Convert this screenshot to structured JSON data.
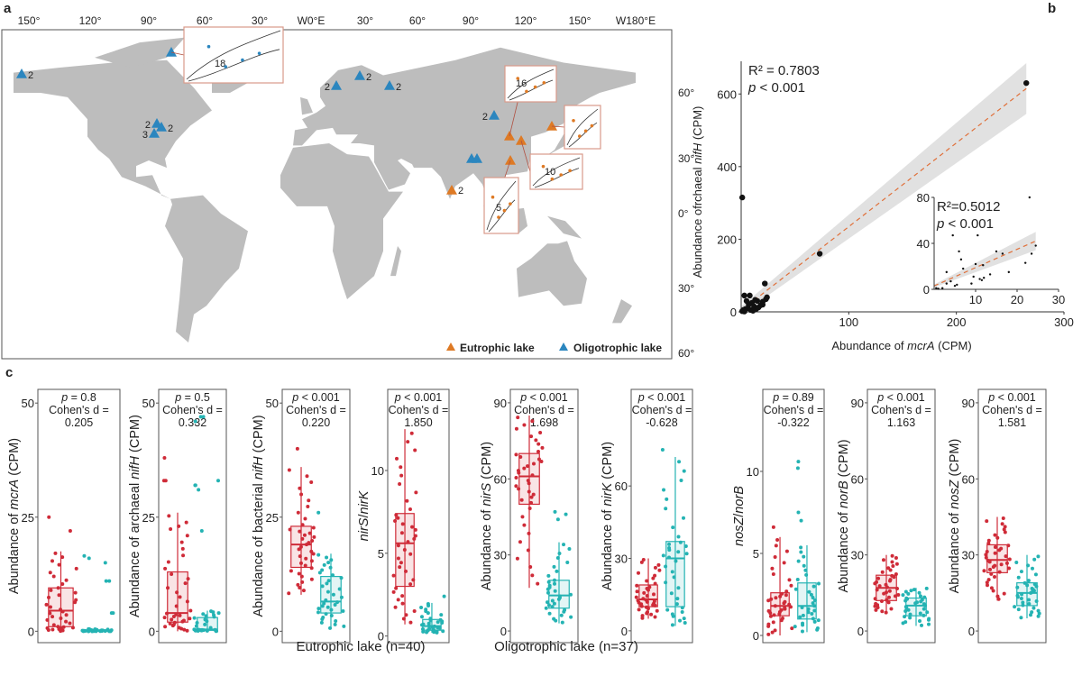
{
  "panel_labels": {
    "a": "a",
    "b": "b",
    "c": "c"
  },
  "map": {
    "lon_labels": [
      "150°",
      "120°",
      "90°",
      "60°",
      "30°",
      "W0°E",
      "30°",
      "60°",
      "90°",
      "120°",
      "150°",
      "W180°E"
    ],
    "lat_labels": [
      "60°",
      "30°",
      "0°",
      "30°",
      "60°"
    ],
    "site_labels": [
      "2",
      "2",
      "2",
      "2",
      "2",
      "2",
      "3",
      "2",
      "2"
    ],
    "inset_labels": [
      "18",
      "16",
      "10",
      "5"
    ],
    "legend": {
      "eutrophic": "Eutrophic lake",
      "oligotrophic": "Oligotrophic lake"
    },
    "colors": {
      "land": "#bdbdbd",
      "eutrophic": "#de7a25",
      "oligotrophic": "#2b86bf",
      "inset_border": "#d99a8a"
    }
  },
  "legend_c": {
    "eutrophic": "Eutrophic lake (n=40)",
    "oligotrophic": "Oligotrophic lake (n=37)"
  },
  "colors": {
    "eutrophic": "#cf2b38",
    "oligotrophic": "#24b3b3",
    "fit": "#e0703a",
    "ci": "#d9d9d9"
  },
  "chart_data": [
    {
      "type": "scatter",
      "id": "b-main",
      "xlabel": {
        "pre": "Abundance of ",
        "gene": "mcrA",
        "post": " (CPM)"
      },
      "ylabel": {
        "pre": "Abundance ofrchaeal ",
        "gene": "nifH",
        "post": " (CPM)"
      },
      "xticks": [
        100,
        200,
        300
      ],
      "yticks": [
        0,
        200,
        400,
        600
      ],
      "xlim": [
        0,
        300
      ],
      "ylim": [
        0,
        690
      ],
      "r2": "R² = 0.7803",
      "p_sym": "p",
      "p_text": " < 0.001",
      "fit": {
        "x0": 0,
        "y0": 4,
        "x1": 265,
        "y1": 615,
        "ci_half_width_end": 70
      },
      "points": [
        [
          1,
          315
        ],
        [
          265,
          630
        ],
        [
          73,
          160
        ],
        [
          22,
          78
        ],
        [
          3,
          45
        ],
        [
          8,
          45
        ],
        [
          5,
          30
        ],
        [
          10,
          25
        ],
        [
          15,
          30
        ],
        [
          20,
          20
        ],
        [
          23,
          35
        ],
        [
          12,
          15
        ],
        [
          6,
          10
        ],
        [
          2,
          5
        ],
        [
          1,
          2
        ],
        [
          4,
          8
        ],
        [
          18,
          18
        ],
        [
          9,
          5
        ],
        [
          14,
          8
        ],
        [
          7,
          20
        ],
        [
          16,
          12
        ],
        [
          11,
          3
        ],
        [
          3,
          1
        ],
        [
          20,
          28
        ],
        [
          24,
          40
        ],
        [
          13,
          33
        ]
      ]
    },
    {
      "type": "scatter",
      "id": "b-inset",
      "xticks": [
        10,
        20,
        30
      ],
      "yticks": [
        0,
        40,
        80
      ],
      "xlim": [
        0,
        30
      ],
      "ylim": [
        0,
        80
      ],
      "r2": "R²=0.5012",
      "p_sym": "p",
      "p_text": " < 0.001",
      "fit": {
        "x0": 0,
        "y0": 3,
        "x1": 24.5,
        "y1": 42,
        "ci_half_width_end": 8
      },
      "points": [
        [
          0.5,
          1
        ],
        [
          1,
          0.5
        ],
        [
          2,
          1
        ],
        [
          3,
          5
        ],
        [
          3,
          15
        ],
        [
          4,
          7
        ],
        [
          4.5,
          47
        ],
        [
          5,
          3
        ],
        [
          5.5,
          4
        ],
        [
          6,
          33
        ],
        [
          6.5,
          26
        ],
        [
          7,
          18
        ],
        [
          9,
          5
        ],
        [
          9.5,
          11
        ],
        [
          10,
          22
        ],
        [
          10.5,
          47
        ],
        [
          11,
          9
        ],
        [
          11.5,
          8
        ],
        [
          11.8,
          21
        ],
        [
          12,
          10
        ],
        [
          13.5,
          13
        ],
        [
          15,
          33
        ],
        [
          16.5,
          31
        ],
        [
          18,
          15
        ],
        [
          22,
          23
        ],
        [
          23,
          80
        ],
        [
          23.5,
          31
        ],
        [
          24.5,
          38
        ]
      ]
    },
    {
      "type": "box",
      "ylabel": [
        {
          "t": "Abundance of "
        },
        {
          "t": "mcrA",
          "i": true
        },
        {
          "t": " (CPM)"
        }
      ],
      "yticks": [
        0,
        25,
        50
      ],
      "ylim": [
        -2.5,
        53
      ],
      "p_sym": "p",
      "p_text": " = 0.8",
      "cohen_label": "Cohen's d =",
      "cohen": "0.205",
      "eutrophic": {
        "whisker_low": 0,
        "q1": 1,
        "median": 4.5,
        "q3": 9.5,
        "whisker_high": 17.5,
        "outliers": [
          25,
          22
        ]
      },
      "oligotrophic": {
        "whisker_low": 0,
        "q1": 0,
        "median": 0.1,
        "q3": 0.3,
        "whisker_high": 0.5,
        "outliers": [
          15,
          16.5,
          16,
          11,
          11,
          4,
          4
        ]
      }
    },
    {
      "type": "box",
      "ylabel": [
        {
          "t": "Abundance of archaeal "
        },
        {
          "t": "nifH",
          "i": true
        },
        {
          "t": " (CPM)"
        }
      ],
      "yticks": [
        0,
        25,
        50
      ],
      "ylim": [
        -2.5,
        53
      ],
      "p_sym": "p",
      "p_text": " = 0.5",
      "cohen_label": "Cohen's d =",
      "cohen": "0.332",
      "eutrophic": {
        "whisker_low": 0,
        "q1": 2,
        "median": 4,
        "q3": 13,
        "whisker_high": 26,
        "outliers": [
          38,
          33,
          33,
          23
        ]
      },
      "oligotrophic": {
        "whisker_low": 0,
        "q1": 0.2,
        "median": 0.4,
        "q3": 3,
        "whisker_high": 4.5,
        "outliers": [
          47,
          47,
          46,
          33,
          32,
          32,
          31,
          22
        ]
      }
    },
    {
      "type": "box",
      "ylabel": [
        {
          "t": "Abundance of bacterial "
        },
        {
          "t": "nifH",
          "i": true
        },
        {
          "t": " (CPM)"
        }
      ],
      "yticks": [
        0,
        25,
        50
      ],
      "ylim": [
        -2.5,
        53
      ],
      "p_sym": "p",
      "p_text": " < 0.001",
      "cohen_label": "Cohen's d =",
      "cohen": "0.220",
      "eutrophic": {
        "whisker_low": 8,
        "q1": 14,
        "median": 19,
        "q3": 23,
        "whisker_high": 36,
        "outliers": [
          40
        ]
      },
      "oligotrophic": {
        "whisker_low": 0.5,
        "q1": 4,
        "median": 6.5,
        "q3": 12,
        "whisker_high": 17,
        "outliers": [
          26
        ]
      }
    },
    {
      "type": "box",
      "ylabel": [
        {
          "t": "nirS",
          "i": true
        },
        {
          "t": "/"
        },
        {
          "t": "nirK",
          "i": true
        }
      ],
      "yticks": [
        0,
        5,
        10
      ],
      "ylim": [
        -0.4,
        14.9
      ],
      "p_sym": "p",
      "p_text": " < 0.001",
      "cohen_label": "Cohen's d =",
      "cohen": "1.850",
      "eutrophic": {
        "whisker_low": 0.7,
        "q1": 3,
        "median": 5.6,
        "q3": 7.4,
        "whisker_high": 12.5,
        "outliers": []
      },
      "oligotrophic": {
        "whisker_low": 0.2,
        "q1": 0.35,
        "median": 0.6,
        "q3": 1.0,
        "whisker_high": 2,
        "outliers": [
          2.4
        ]
      }
    },
    {
      "type": "box",
      "ylabel": [
        {
          "t": "Abundance of "
        },
        {
          "t": "nirS",
          "i": true
        },
        {
          "t": " (CPM)"
        }
      ],
      "yticks": [
        0,
        30,
        60,
        90
      ],
      "ylim": [
        -4.6,
        95.3
      ],
      "p_sym": "p",
      "p_text": " < 0.001",
      "cohen_label": "Cohen's d =",
      "cohen": "1.698",
      "eutrophic": {
        "whisker_low": 17,
        "q1": 50,
        "median": 61,
        "q3": 70,
        "whisker_high": 85,
        "outliers": []
      },
      "oligotrophic": {
        "whisker_low": 3,
        "q1": 9,
        "median": 14,
        "q3": 20,
        "whisker_high": 35,
        "outliers": [
          47,
          46,
          44
        ]
      }
    },
    {
      "type": "box",
      "ylabel": [
        {
          "t": "Abundance of "
        },
        {
          "t": "nirK",
          "i": true
        },
        {
          "t": " (CPM)"
        }
      ],
      "yticks": [
        0,
        30,
        60
      ],
      "ylim": [
        -4.9,
        100
      ],
      "p_sym": "p",
      "p_text": " < 0.001",
      "cohen_label": "Cohen's d =",
      "cohen": "-0.628",
      "eutrophic": {
        "whisker_low": 5,
        "q1": 10,
        "median": 13,
        "q3": 19,
        "whisker_high": 30,
        "outliers": []
      },
      "oligotrophic": {
        "whisker_low": 2,
        "q1": 10,
        "median": 30,
        "q3": 37,
        "whisker_high": 72,
        "outliers": [
          75
        ]
      }
    },
    {
      "type": "box",
      "ylabel": [
        {
          "t": "nosZ",
          "i": true
        },
        {
          "t": "/"
        },
        {
          "t": "norB",
          "i": true
        }
      ],
      "yticks": [
        0,
        5,
        10
      ],
      "ylim": [
        -0.44,
        15
      ],
      "p_sym": "p",
      "p_text": " = 0.89",
      "cohen_label": "Cohen's d =",
      "cohen": "-0.322",
      "eutrophic": {
        "whisker_low": 0,
        "q1": 1.2,
        "median": 1.8,
        "q3": 2.6,
        "whisker_high": 6,
        "outliers": [
          6.6
        ]
      },
      "oligotrophic": {
        "whisker_low": 0.2,
        "q1": 1,
        "median": 1.8,
        "q3": 3.2,
        "whisker_high": 5.5,
        "outliers": [
          10.6,
          10.2,
          7.5,
          7
        ]
      }
    },
    {
      "type": "box",
      "ylabel": [
        {
          "t": "Abundance of "
        },
        {
          "t": "norB",
          "i": true
        },
        {
          "t": " (CPM)"
        }
      ],
      "yticks": [
        0,
        30,
        60,
        90
      ],
      "ylim": [
        -4.6,
        95.3
      ],
      "p_sym": "p",
      "p_text": " < 0.001",
      "cohen_label": "Cohen's d =",
      "cohen": "1.163",
      "eutrophic": {
        "whisker_low": 7,
        "q1": 12,
        "median": 17,
        "q3": 22,
        "whisker_high": 30,
        "outliers": []
      },
      "oligotrophic": {
        "whisker_low": 2,
        "q1": 6,
        "median": 10,
        "q3": 13,
        "whisker_high": 17,
        "outliers": []
      }
    },
    {
      "type": "box",
      "ylabel": [
        {
          "t": "Abundance of "
        },
        {
          "t": "nosZ",
          "i": true
        },
        {
          "t": " (CPM)"
        }
      ],
      "yticks": [
        0,
        30,
        60,
        90
      ],
      "ylim": [
        -4.6,
        95.3
      ],
      "p_sym": "p",
      "p_text": " < 0.001",
      "cohen_label": "Cohen's d =",
      "cohen": "1.581",
      "eutrophic": {
        "whisker_low": 12,
        "q1": 23,
        "median": 28,
        "q3": 34,
        "whisker_high": 45,
        "outliers": []
      },
      "oligotrophic": {
        "whisker_low": 5,
        "q1": 10,
        "median": 15,
        "q3": 19,
        "whisker_high": 30,
        "outliers": []
      }
    }
  ]
}
